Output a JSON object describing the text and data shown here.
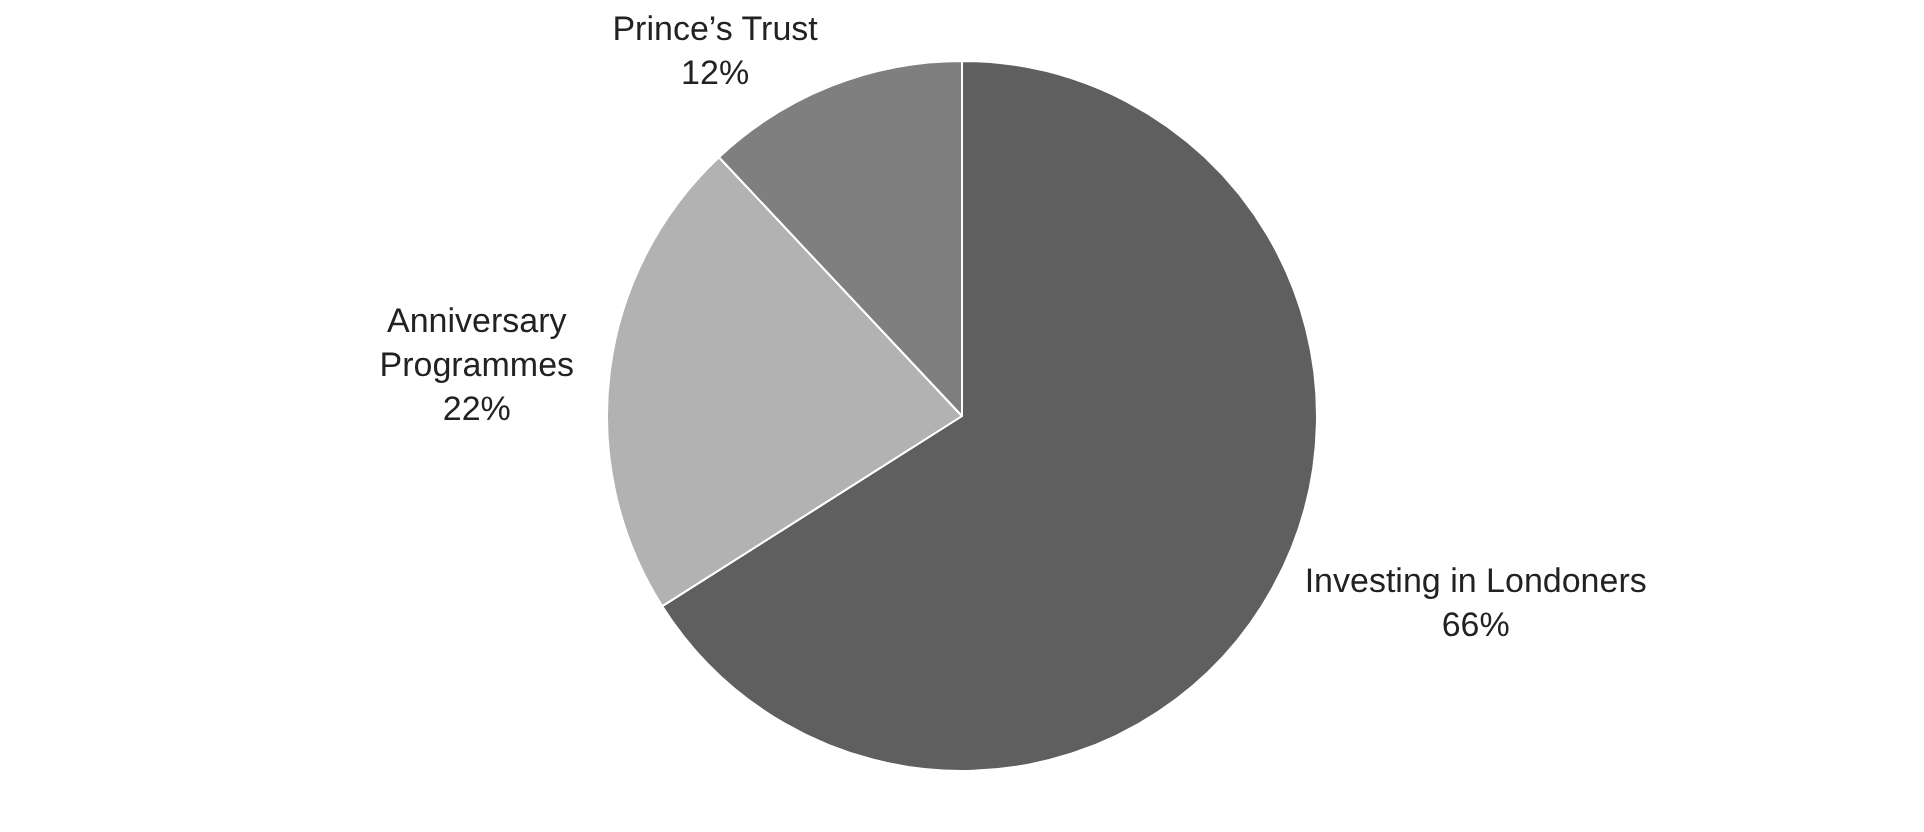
{
  "chart_data": {
    "type": "pie",
    "categories": [
      "Investing in Londoners",
      "Anniversary Programmes",
      "Prince’s Trust"
    ],
    "values": [
      66,
      22,
      12
    ],
    "colors": [
      "#5f5f5f",
      "#b2b2b2",
      "#7f7f7f"
    ],
    "value_labels": [
      "66%",
      "22%",
      "12%"
    ],
    "legend": false
  }
}
